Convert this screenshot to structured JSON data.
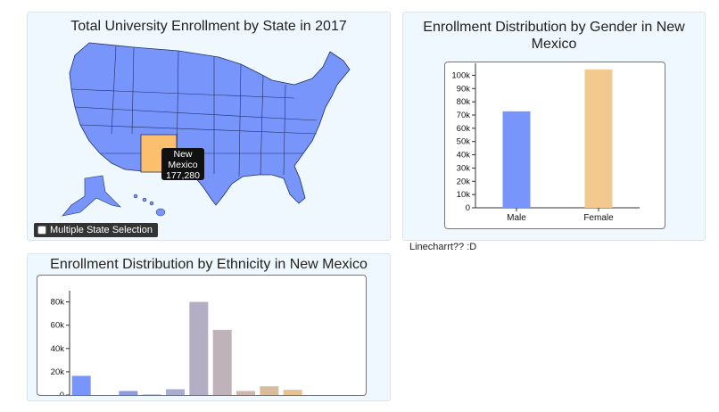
{
  "map_panel": {
    "title": "Total University Enrollment by State in 2017",
    "selected_state": "New Mexico",
    "tooltip": {
      "line1": "New",
      "line2": "Mexico",
      "value": "177,280"
    },
    "checkbox_label": "Multiple State Selection",
    "checkbox_checked": false,
    "colors": {
      "state": "#7895fb",
      "selected": "#fbbf6e",
      "border": "#1f2f63"
    }
  },
  "gender_panel": {
    "title": "Enrollment Distribution by Gender in New Mexico"
  },
  "ethnicity_panel": {
    "title": "Enrollment Distribution by Ethnicity in New Mexico"
  },
  "linechart_placeholder": "Linecharrt?? :D",
  "chart_data": [
    {
      "type": "bar",
      "title": "Enrollment Distribution by Gender in New Mexico",
      "categories": [
        "Male",
        "Female"
      ],
      "values": [
        72800,
        104480
      ],
      "ylim": [
        0,
        105000
      ],
      "yticks": [
        "0",
        "10k",
        "20k",
        "30k",
        "40k",
        "50k",
        "60k",
        "70k",
        "80k",
        "90k",
        "100k"
      ],
      "colors": [
        "#7895fb",
        "#f2c98e"
      ]
    },
    {
      "type": "bar",
      "title": "Enrollment Distribution by Ethnicity in New Mexico",
      "values": [
        16500,
        0,
        3500,
        500,
        5000,
        80000,
        56000,
        3500,
        7500,
        4500,
        0,
        0
      ],
      "ylim": [
        0,
        85000
      ],
      "yticks": [
        "0",
        "20k",
        "40k",
        "60k",
        "80k"
      ],
      "colors": [
        "#7895fb",
        "#8a95e8",
        "#8d9ce0",
        "#9ea7d8",
        "#a9abd0",
        "#b3aec6",
        "#c0b2b9",
        "#cdb6ab",
        "#d9bb9d",
        "#e6c191",
        "#f0c788",
        "#f7cb85"
      ]
    }
  ]
}
